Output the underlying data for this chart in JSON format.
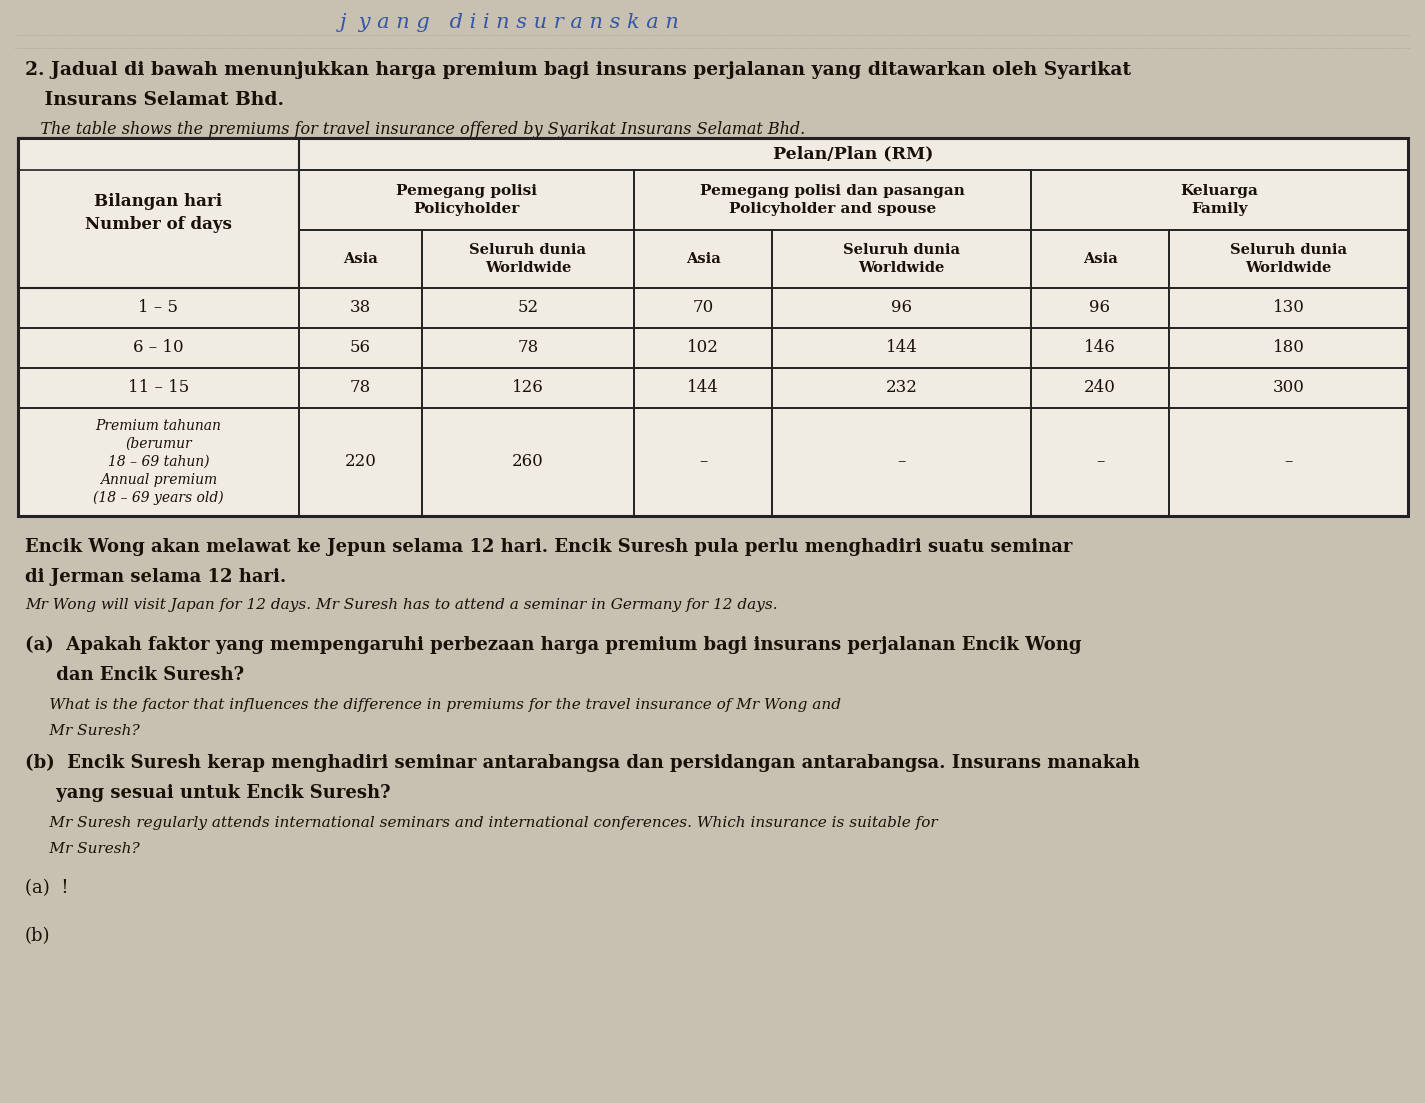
{
  "bg_color": "#c8c0b0",
  "table_bg": "#e0d8c8",
  "white": "#f0ece4",
  "text_color": "#1a1008",
  "header_top": "Pelan/Plan (RM)",
  "row_header": "Bilangan hari\nNumber of days",
  "col_group1": "Pemegang polisi\nPolicyholder",
  "col_group2": "Pemegang polisi dan pasangan\nPolicyholder and spouse",
  "col_group3": "Keluarga\nFamily",
  "sub_asia": "Asia",
  "sub_worldwide": "Seluruh dunia\nWorldwide",
  "rows": [
    {
      "label": "1 – 5",
      "values": [
        "38",
        "52",
        "70",
        "96",
        "96",
        "130"
      ]
    },
    {
      "label": "6 – 10",
      "values": [
        "56",
        "78",
        "102",
        "144",
        "146",
        "180"
      ]
    },
    {
      "label": "11 – 15",
      "values": [
        "78",
        "126",
        "144",
        "232",
        "240",
        "300"
      ]
    },
    {
      "label": "Premium tahunan\n(berumur\n18 – 69 tahun)\nAnnual premium\n(18 – 69 years old)",
      "values": [
        "220",
        "260",
        "–",
        "–",
        "–",
        "–"
      ]
    }
  ],
  "title_num": "2.",
  "title_malay1": " Jadual di bawah menunjukkan harga premium bagi insurans perjalanan yang ditawarkan oleh Syarikat",
  "title_malay2": "   Insurans Selamat Bhd.",
  "title_english": "   The table shows the premiums for travel insurance offered by Syarikat Insurans Selamat Bhd.",
  "para_malay1": "Encik Wong akan melawat ke Jepun selama 12 hari. Encik Suresh pula perlu menghadiri suatu seminar",
  "para_malay2": "di Jerman selama 12 hari.",
  "para_english": "Mr Wong will visit Japan for 12 days. Mr Suresh has to attend a seminar in Germany for 12 days.",
  "qa_label": "(a)",
  "qa_malay1": "  Apakah faktor yang mempengaruhi perbezaan harga premium bagi insurans perjalanan Encik Wong",
  "qa_malay2": "  dan Encik Suresh?",
  "qa_eng1": "     What is the factor that influences the difference in premiums for the travel insurance of Mr Wong and",
  "qa_eng2": "     Mr Suresh?",
  "qb_label": "(b)",
  "qb_malay1": "  Encik Suresh kerap menghadiri seminar antarabangsa dan persidangan antarabangsa. Insurans manakah",
  "qb_malay2": "  yang sesuai untuk Encik Suresh?",
  "qb_eng1": "     Mr Suresh regularly attends international seminars and international conferences. Which insurance is suitable for",
  "qb_eng2": "     Mr Suresh?",
  "ans_a": "(a)  !",
  "ans_b": "(b)"
}
